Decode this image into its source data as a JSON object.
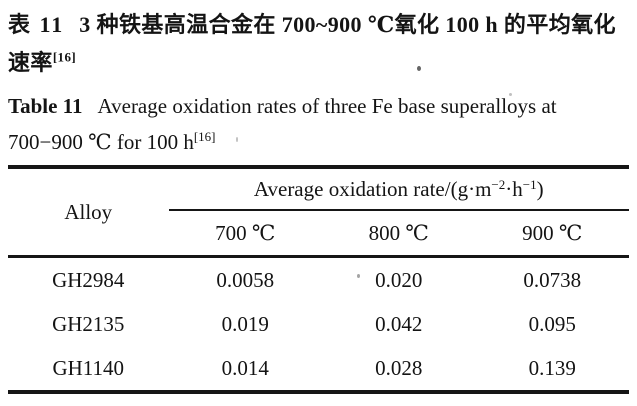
{
  "caption_zh": {
    "label": "表 11",
    "text": "3 种铁基高温合金在 700~900 ℃氧化 100 h 的平均氧化速率",
    "ref_sup": "[16]"
  },
  "caption_en": {
    "label": "Table 11",
    "text": "Average oxidation rates of three Fe base superalloys at 700−900 ℃ for 100 h",
    "ref_sup": "[16]"
  },
  "table": {
    "corner_header": "Alloy",
    "span_header": {
      "prefix": "Average oxidation rate/(g·m",
      "sup1": "−2",
      "mid": "·h",
      "sup2": "−1",
      "suffix": ")"
    },
    "temp_headers": [
      "700 ℃",
      "800 ℃",
      "900 ℃"
    ],
    "rows": [
      {
        "alloy": "GH2984",
        "values": [
          "0.0058",
          "0.020",
          "0.0738"
        ]
      },
      {
        "alloy": "GH2135",
        "values": [
          "0.019",
          "0.042",
          "0.095"
        ]
      },
      {
        "alloy": "GH1140",
        "values": [
          "0.014",
          "0.028",
          "0.139"
        ]
      }
    ]
  },
  "colors": {
    "text": "#141414",
    "rule": "#161616",
    "background": "#ffffff"
  }
}
